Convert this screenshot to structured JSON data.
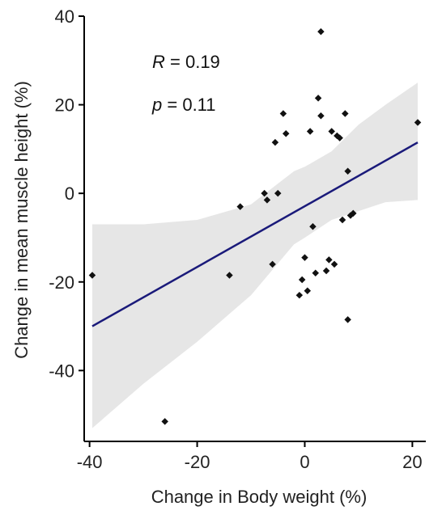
{
  "chart_data": {
    "type": "scatter",
    "title": "",
    "xlabel": "Change in Body weight (%)",
    "ylabel": "Change in mean muscle height (%)",
    "xlim": [
      -41,
      22.5
    ],
    "ylim": [
      -56,
      40
    ],
    "x_ticks": [
      -40,
      -20,
      0,
      20
    ],
    "y_ticks": [
      -40,
      -20,
      0,
      20,
      40
    ],
    "x_tick_labels": [
      "-40",
      "-20",
      "0",
      "20"
    ],
    "y_tick_labels": [
      "-40",
      "-20",
      "0",
      "20",
      "40"
    ],
    "grid": false,
    "annotations": {
      "r_label": "R",
      "r_value": "= 0.19",
      "p_label": "p",
      "p_value": "= 0.11"
    },
    "regression_line": {
      "x": [
        -39.5,
        21
      ],
      "y": [
        -30,
        11.5
      ]
    },
    "confidence_band": {
      "x": [
        -39.5,
        -30,
        -20,
        -10,
        -2,
        0,
        5,
        10,
        15,
        21
      ],
      "upper": [
        -7,
        -7,
        -6,
        -2.5,
        5,
        6,
        9.5,
        15.5,
        20,
        25
      ],
      "lower": [
        -53,
        -43,
        -33.5,
        -23,
        -11.5,
        -10,
        -6,
        -4,
        -2,
        -1.5
      ]
    },
    "points": [
      {
        "x": -39.5,
        "y": -18.5
      },
      {
        "x": -26,
        "y": -51.5
      },
      {
        "x": -14,
        "y": -18.5
      },
      {
        "x": -12,
        "y": -3
      },
      {
        "x": -7.5,
        "y": 0
      },
      {
        "x": -7,
        "y": -1.5
      },
      {
        "x": -6,
        "y": -16
      },
      {
        "x": -5.5,
        "y": 11.5
      },
      {
        "x": -5,
        "y": 0
      },
      {
        "x": -4,
        "y": 18
      },
      {
        "x": -3.5,
        "y": 13.5
      },
      {
        "x": -1,
        "y": -23
      },
      {
        "x": -0.5,
        "y": -19.5
      },
      {
        "x": 0,
        "y": -14.5
      },
      {
        "x": 0.5,
        "y": -22
      },
      {
        "x": 1,
        "y": 14
      },
      {
        "x": 1.5,
        "y": -7.5
      },
      {
        "x": 2,
        "y": -18
      },
      {
        "x": 2.5,
        "y": 21.5
      },
      {
        "x": 3,
        "y": 17.5
      },
      {
        "x": 3,
        "y": 36.5
      },
      {
        "x": 4,
        "y": -17.5
      },
      {
        "x": 4.5,
        "y": -15
      },
      {
        "x": 5,
        "y": 14
      },
      {
        "x": 5.5,
        "y": -16
      },
      {
        "x": 6,
        "y": 13
      },
      {
        "x": 6.5,
        "y": 12.5
      },
      {
        "x": 7,
        "y": -6
      },
      {
        "x": 7.5,
        "y": 18
      },
      {
        "x": 8,
        "y": 5
      },
      {
        "x": 8,
        "y": -28.5
      },
      {
        "x": 8.5,
        "y": -5
      },
      {
        "x": 9,
        "y": -4.5
      },
      {
        "x": 21,
        "y": 16
      }
    ],
    "colors": {
      "points": "#111111",
      "regression_line": "#1a1a7a",
      "confidence_band": "#e6e6e6",
      "axes": "#000000"
    }
  }
}
